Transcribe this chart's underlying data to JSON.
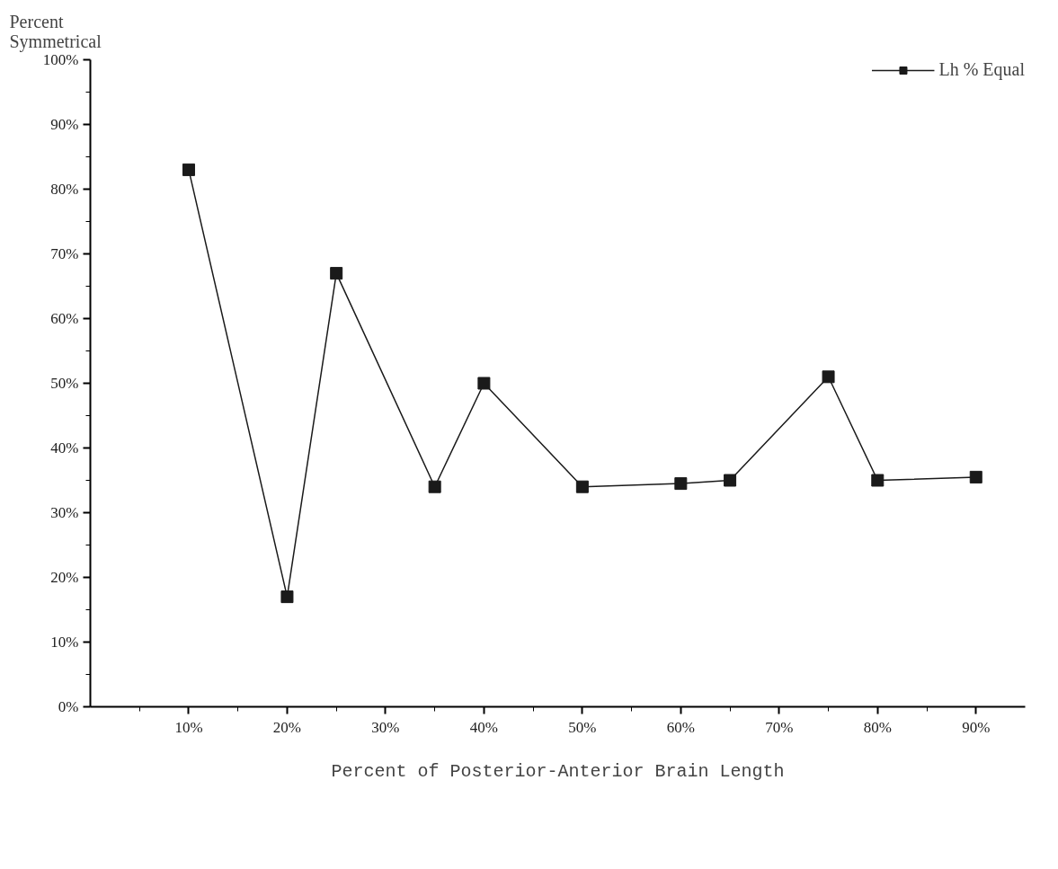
{
  "chart_data": {
    "type": "line",
    "ylabel": "Percent\nSymmetrical",
    "xlabel": "Percent of Posterior-Anterior Brain Length",
    "x": [
      10,
      20,
      25,
      35,
      40,
      50,
      60,
      65,
      75,
      80,
      90
    ],
    "series": [
      {
        "name": "Lh % Equal",
        "color": "#1a1a1a",
        "values": [
          83,
          17,
          67,
          34,
          50,
          34,
          34.5,
          35,
          51,
          35,
          35.5
        ]
      }
    ],
    "xlim": [
      0,
      95
    ],
    "xticks": [
      {
        "value": 5,
        "label": null
      },
      {
        "value": 10,
        "label": "10%"
      },
      {
        "value": 15,
        "label": null
      },
      {
        "value": 20,
        "label": "20%"
      },
      {
        "value": 25,
        "label": null
      },
      {
        "value": 30,
        "label": "30%"
      },
      {
        "value": 35,
        "label": null
      },
      {
        "value": 40,
        "label": "40%"
      },
      {
        "value": 45,
        "label": null
      },
      {
        "value": 50,
        "label": "50%"
      },
      {
        "value": 55,
        "label": null
      },
      {
        "value": 60,
        "label": "60%"
      },
      {
        "value": 65,
        "label": null
      },
      {
        "value": 70,
        "label": "70%"
      },
      {
        "value": 75,
        "label": null
      },
      {
        "value": 80,
        "label": "80%"
      },
      {
        "value": 85,
        "label": null
      },
      {
        "value": 90,
        "label": "90%"
      }
    ],
    "ylim": [
      0,
      100
    ],
    "yticks": [
      {
        "value": 0,
        "label": "0%"
      },
      {
        "value": 5,
        "label": null
      },
      {
        "value": 10,
        "label": "10%"
      },
      {
        "value": 15,
        "label": null
      },
      {
        "value": 20,
        "label": "20%"
      },
      {
        "value": 25,
        "label": null
      },
      {
        "value": 30,
        "label": "30%"
      },
      {
        "value": 35,
        "label": null
      },
      {
        "value": 40,
        "label": "40%"
      },
      {
        "value": 45,
        "label": null
      },
      {
        "value": 50,
        "label": "50%"
      },
      {
        "value": 55,
        "label": null
      },
      {
        "value": 60,
        "label": "60%"
      },
      {
        "value": 65,
        "label": null
      },
      {
        "value": 70,
        "label": "70%"
      },
      {
        "value": 75,
        "label": null
      },
      {
        "value": 80,
        "label": "80%"
      },
      {
        "value": 85,
        "label": null
      },
      {
        "value": 90,
        "label": "90%"
      },
      {
        "value": 95,
        "label": null
      },
      {
        "value": 100,
        "label": "100%"
      }
    ],
    "grid": false,
    "legend": "top right",
    "marker": "square",
    "line_style": "solid"
  }
}
